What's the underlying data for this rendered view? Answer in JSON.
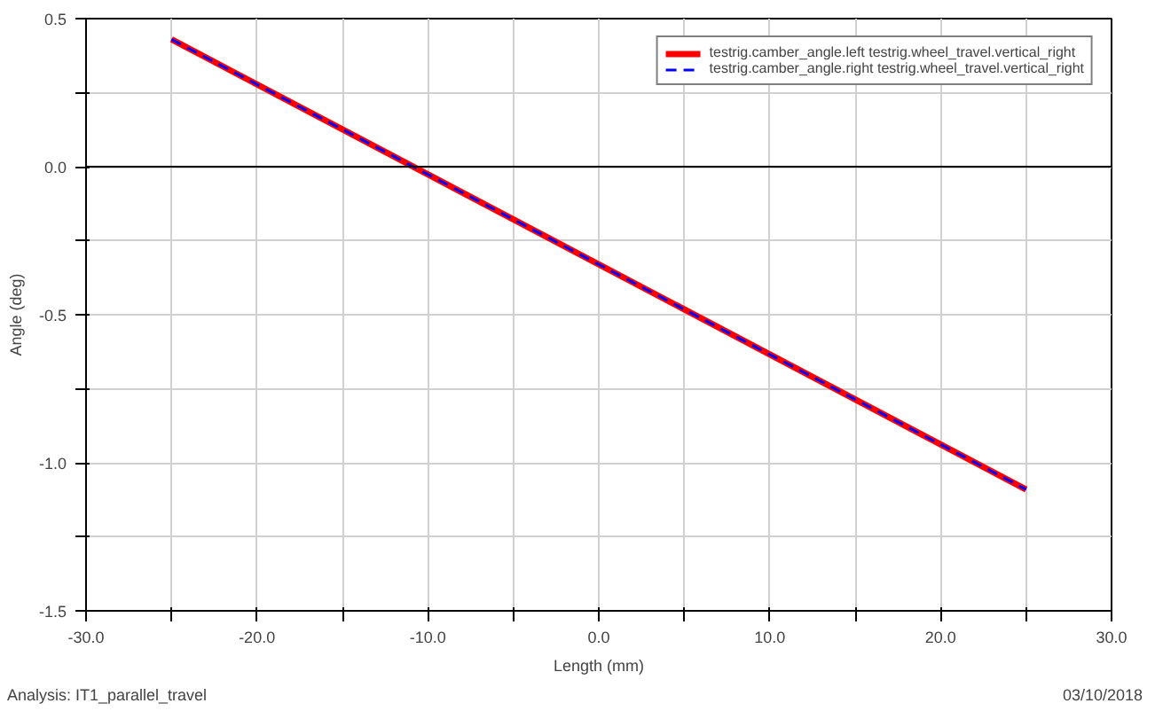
{
  "chart_data": {
    "type": "line",
    "xlabel": "Length (mm)",
    "ylabel": "Angle (deg)",
    "x": [
      -25,
      25
    ],
    "series": [
      {
        "name": "testrig.camber_angle.left testrig.wheel_travel.vertical_right",
        "color": "#ff0000",
        "values": [
          0.43,
          -1.09
        ],
        "line_style": "solid"
      },
      {
        "name": "testrig.camber_angle.right testrig.wheel_travel.vertical_right",
        "color": "#0000ff",
        "values": [
          0.43,
          -1.09
        ],
        "line_style": "dashed"
      }
    ],
    "xlim": [
      -30,
      30
    ],
    "ylim": [
      -1.5,
      0.5
    ],
    "xticks": [
      {
        "value": -30,
        "label": "-30.0"
      },
      {
        "value": -25,
        "label": null
      },
      {
        "value": -20,
        "label": "-20.0"
      },
      {
        "value": -15,
        "label": null
      },
      {
        "value": -10,
        "label": "-10.0"
      },
      {
        "value": -5,
        "label": null
      },
      {
        "value": 0,
        "label": "0.0"
      },
      {
        "value": 5,
        "label": null
      },
      {
        "value": 10,
        "label": "10.0"
      },
      {
        "value": 15,
        "label": null
      },
      {
        "value": 20,
        "label": "20.0"
      },
      {
        "value": 25,
        "label": null
      },
      {
        "value": 30,
        "label": "30.0"
      }
    ],
    "yticks": [
      {
        "value": -1.5,
        "label": "-1.5"
      },
      {
        "value": -1.25,
        "label": null
      },
      {
        "value": -1.0,
        "label": "-1.0"
      },
      {
        "value": -0.75,
        "label": null
      },
      {
        "value": -0.5,
        "label": "-0.5"
      },
      {
        "value": -0.25,
        "label": null
      },
      {
        "value": 0,
        "label": "0.0"
      },
      {
        "value": 0.25,
        "label": null
      },
      {
        "value": 0.5,
        "label": "0.5"
      }
    ],
    "ref_lines": [
      {
        "axis": "y",
        "value": 0,
        "color": "#000000"
      }
    ],
    "grid": true,
    "legend": "top right",
    "annotations": [
      "Analysis: IT1_parallel_travel",
      "03/10/2018"
    ]
  }
}
